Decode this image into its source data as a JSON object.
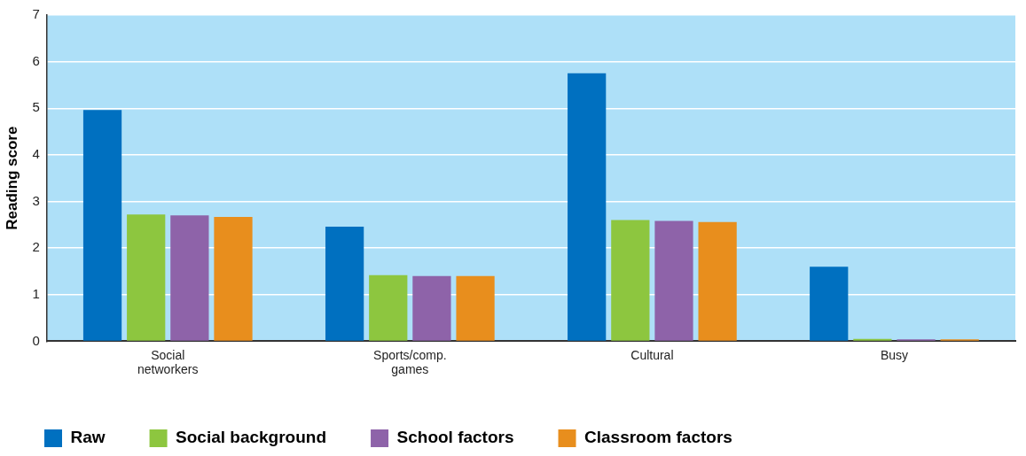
{
  "chart_data": {
    "type": "bar",
    "ylabel": "Reading score",
    "categories": [
      "Social networkers",
      "Sports/comp. games",
      "Cultural",
      "Busy"
    ],
    "series": [
      {
        "name": "Raw",
        "color": "#0070c0",
        "values": [
          4.96,
          2.46,
          5.75,
          1.6
        ]
      },
      {
        "name": "Social background",
        "color": "#8dc63f",
        "values": [
          2.72,
          1.42,
          2.6,
          0.05
        ]
      },
      {
        "name": "School factors",
        "color": "#8e63a9",
        "values": [
          2.7,
          1.4,
          2.58,
          0.04
        ]
      },
      {
        "name": "Classroom factors",
        "color": "#e88e1d",
        "values": [
          2.67,
          1.4,
          2.56,
          0.04
        ]
      }
    ],
    "ylim": [
      0,
      7
    ],
    "yticks": [
      0,
      1,
      2,
      3,
      4,
      5,
      6,
      7
    ],
    "grid": "y",
    "legend": "bottom"
  }
}
